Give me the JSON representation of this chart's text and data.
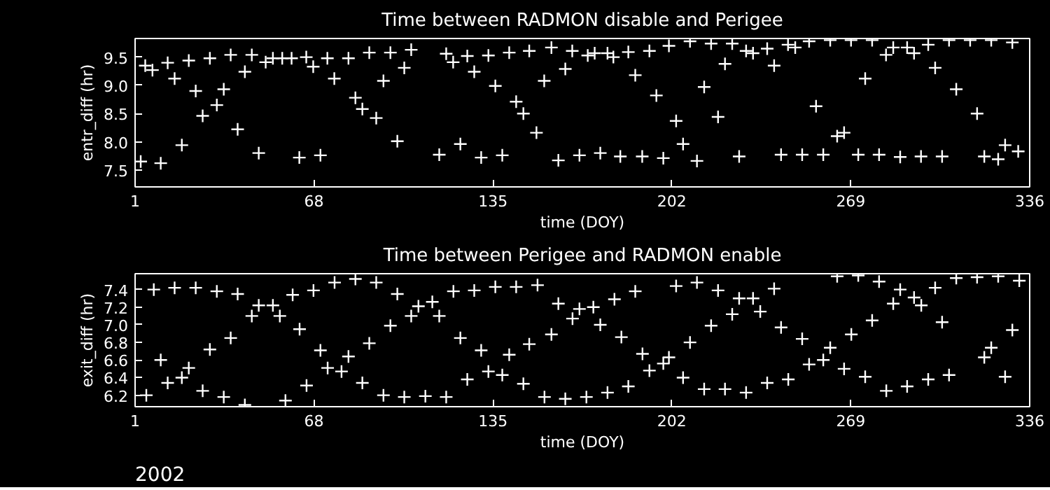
{
  "chart_data": [
    {
      "type": "scatter",
      "title": "Time between RADMON disable and Perigee",
      "xlabel": "time (DOY)",
      "ylabel": "entr_diff (hr)",
      "marker": "cross",
      "xlim": [
        1,
        336
      ],
      "xticks": [
        1,
        68,
        135,
        202,
        269,
        336
      ],
      "ylim": [
        7.2,
        9.83
      ],
      "yticks": [
        {
          "value": 7.5,
          "label": "7.5"
        },
        {
          "value": 8,
          "label": "8.0"
        },
        {
          "value": 8.5,
          "label": "8.5"
        },
        {
          "value": 9,
          "label": "9.0"
        },
        {
          "value": 9.5,
          "label": "9.5"
        }
      ],
      "series": [
        {
          "color": "#ffffff",
          "x": [
            3.1,
            4.8,
            7.5,
            10.6,
            13.2,
            15.8,
            18.5,
            21.1,
            23.7,
            26.3,
            29.0,
            31.6,
            34.2,
            36.8,
            39.4,
            42.1,
            44.7,
            47.3,
            49.9,
            52.6,
            56.1,
            59.6,
            62.5,
            65.1,
            67.7,
            70.4,
            73.0,
            75.6,
            80.9,
            83.5,
            86.1,
            88.7,
            91.3,
            94.0,
            96.6,
            99.2,
            101.8,
            104.4,
            114.9,
            117.5,
            120.1,
            122.8,
            125.4,
            128.0,
            130.6,
            133.3,
            135.9,
            138.5,
            141.1,
            143.7,
            146.4,
            148.6,
            151.3,
            154.2,
            156.9,
            159.5,
            162.1,
            164.7,
            167.4,
            170.5,
            173.1,
            175.2,
            177.9,
            180.1,
            182.7,
            185.7,
            188.3,
            190.9,
            193.6,
            196.2,
            198.8,
            200.9,
            203.6,
            206.2,
            208.8,
            211.4,
            214.1,
            216.7,
            219.3,
            221.9,
            224.6,
            227.2,
            229.8,
            232.4,
            237.7,
            240.3,
            242.9,
            245.5,
            248.2,
            250.8,
            253.4,
            256.0,
            258.7,
            261.3,
            263.9,
            266.5,
            269.1,
            271.8,
            274.4,
            277.0,
            279.6,
            282.2,
            284.9,
            287.5,
            290.1,
            292.7,
            295.3,
            298.0,
            300.6,
            303.2,
            305.8,
            308.5,
            313.7,
            316.3,
            319.0,
            321.6,
            324.2,
            326.8,
            329.5,
            331.7
          ],
          "values": [
            7.65,
            9.35,
            9.27,
            7.62,
            9.4,
            9.12,
            7.94,
            9.44,
            8.9,
            8.46,
            9.48,
            8.65,
            8.93,
            9.54,
            8.22,
            9.24,
            9.54,
            7.8,
            9.41,
            9.48,
            9.48,
            9.48,
            7.72,
            9.5,
            9.33,
            7.76,
            9.48,
            9.12,
            9.48,
            8.78,
            8.58,
            9.58,
            8.42,
            9.08,
            9.58,
            8.01,
            9.31,
            9.63,
            7.77,
            9.56,
            9.41,
            7.96,
            9.52,
            9.24,
            7.72,
            9.53,
            8.99,
            7.76,
            9.58,
            8.71,
            8.5,
            9.61,
            8.16,
            9.08,
            9.67,
            7.67,
            9.29,
            9.61,
            7.76,
            9.53,
            9.57,
            7.8,
            9.57,
            9.5,
            7.74,
            9.59,
            9.18,
            7.74,
            9.61,
            8.82,
            7.71,
            9.7,
            8.37,
            7.96,
            9.78,
            7.66,
            8.97,
            9.74,
            8.44,
            9.38,
            9.74,
            7.74,
            9.61,
            9.57,
            9.65,
            9.35,
            7.77,
            9.72,
            9.67,
            7.77,
            9.78,
            8.63,
            7.77,
            9.8,
            8.1,
            8.16,
            9.8,
            7.77,
            9.12,
            9.8,
            7.77,
            9.54,
            9.67,
            7.73,
            9.67,
            9.57,
            7.74,
            9.72,
            9.31,
            7.74,
            9.8,
            8.93,
            9.8,
            8.5,
            7.74,
            9.8,
            7.69,
            7.94,
            9.76,
            7.83
          ]
        }
      ]
    },
    {
      "type": "scatter",
      "title": "Time between Perigee and RADMON enable",
      "xlabel": "time (DOY)",
      "ylabel": "exit_diff (hr)",
      "marker": "cross",
      "xlim": [
        1,
        336
      ],
      "xticks": [
        1,
        68,
        135,
        202,
        269,
        336
      ],
      "ylim": [
        6.07,
        7.58
      ],
      "yticks": [
        6.2,
        6.4,
        6.6,
        6.8,
        {
          "value": 7,
          "label": "7.0"
        },
        7.2,
        7.4
      ],
      "annotations": [
        "2002"
      ],
      "series": [
        {
          "color": "#ffffff",
          "x": [
            5.2,
            8.0,
            10.6,
            13.2,
            15.8,
            18.5,
            21.1,
            23.7,
            26.3,
            29.0,
            31.6,
            34.2,
            36.8,
            39.4,
            42.1,
            44.7,
            47.3,
            52.6,
            55.2,
            57.3,
            60.0,
            62.6,
            65.2,
            67.8,
            70.4,
            73.1,
            75.7,
            78.3,
            80.9,
            83.5,
            86.1,
            88.7,
            91.3,
            94.0,
            96.6,
            99.2,
            101.8,
            104.4,
            107.1,
            109.7,
            112.3,
            114.9,
            117.5,
            120.2,
            122.8,
            125.4,
            128.0,
            130.6,
            133.3,
            135.9,
            138.5,
            141.1,
            143.7,
            146.4,
            148.6,
            151.7,
            154.3,
            156.9,
            159.5,
            162.1,
            164.8,
            167.4,
            170.0,
            172.6,
            175.2,
            177.9,
            180.5,
            183.1,
            185.7,
            188.3,
            191.0,
            193.6,
            198.8,
            200.9,
            203.6,
            206.2,
            208.8,
            211.4,
            214.1,
            216.7,
            219.3,
            221.9,
            224.6,
            227.2,
            229.8,
            232.4,
            235.1,
            237.7,
            240.3,
            242.9,
            245.6,
            250.8,
            253.4,
            258.7,
            261.3,
            263.9,
            266.5,
            269.2,
            271.8,
            274.4,
            277.0,
            279.6,
            282.3,
            284.9,
            287.5,
            290.1,
            292.7,
            295.4,
            298.0,
            300.6,
            303.2,
            305.8,
            308.5,
            316.3,
            319.0,
            321.6,
            324.2,
            326.8,
            329.5,
            332.1
          ],
          "values": [
            6.2,
            7.4,
            6.6,
            6.34,
            7.42,
            6.4,
            6.51,
            7.42,
            6.25,
            6.72,
            7.38,
            6.18,
            6.85,
            7.35,
            6.09,
            7.1,
            7.22,
            7.22,
            7.1,
            6.14,
            7.34,
            6.95,
            6.31,
            7.39,
            6.71,
            6.51,
            7.48,
            6.47,
            6.64,
            7.52,
            6.34,
            6.79,
            7.48,
            6.2,
            6.99,
            7.35,
            6.18,
            7.1,
            7.21,
            6.19,
            7.26,
            7.1,
            6.18,
            7.38,
            6.85,
            6.38,
            7.39,
            6.71,
            6.47,
            7.43,
            6.43,
            6.66,
            7.43,
            6.33,
            6.78,
            7.45,
            6.18,
            6.89,
            7.24,
            6.16,
            7.07,
            7.18,
            6.18,
            7.2,
            7.0,
            6.23,
            7.29,
            6.86,
            6.3,
            7.38,
            6.67,
            6.48,
            6.56,
            6.63,
            7.44,
            6.4,
            6.8,
            7.48,
            6.27,
            6.99,
            7.39,
            6.27,
            7.12,
            7.3,
            6.23,
            7.3,
            7.15,
            6.34,
            7.41,
            6.97,
            6.38,
            6.84,
            6.55,
            6.6,
            6.74,
            7.55,
            6.5,
            6.89,
            7.56,
            6.41,
            7.05,
            7.49,
            6.25,
            7.24,
            7.4,
            6.3,
            7.31,
            7.22,
            6.38,
            7.42,
            7.03,
            6.43,
            7.53,
            7.54,
            6.63,
            6.74,
            7.55,
            6.41,
            6.94,
            7.5
          ]
        }
      ]
    }
  ]
}
